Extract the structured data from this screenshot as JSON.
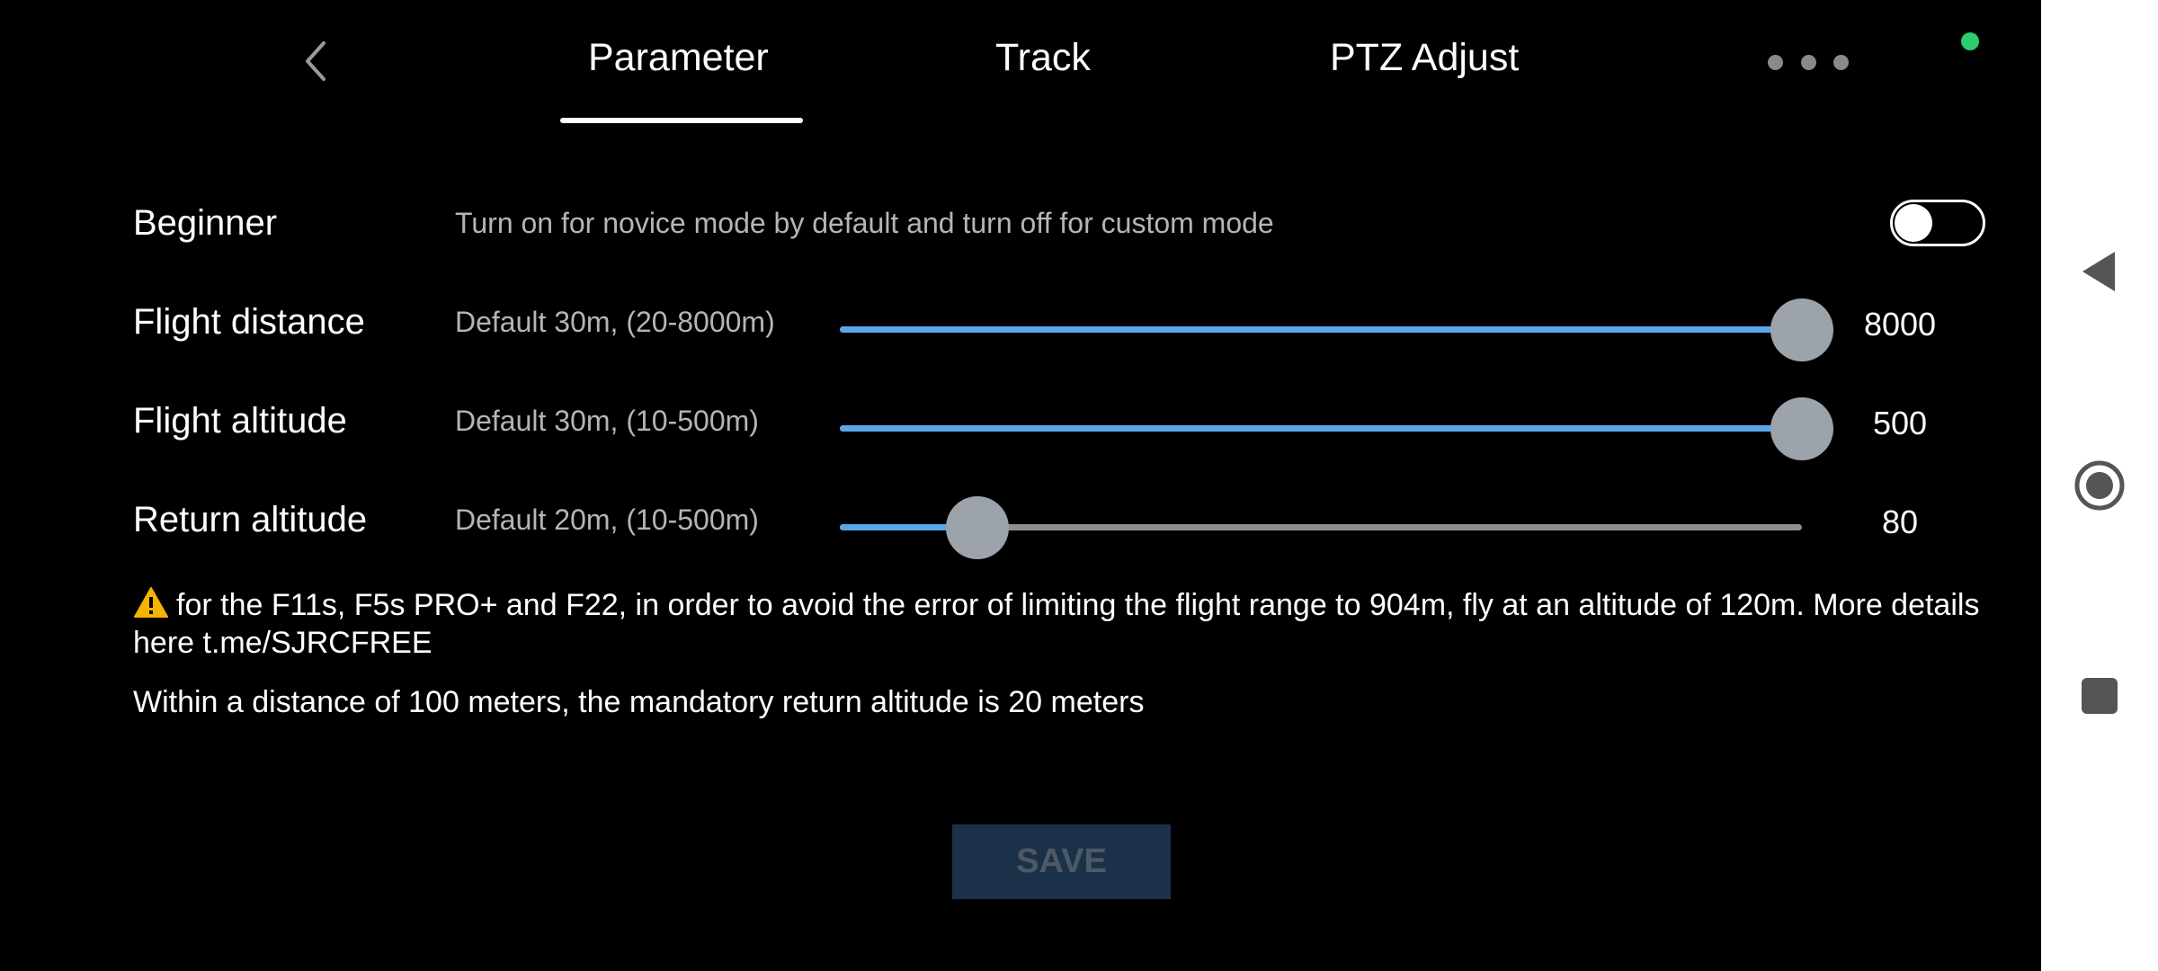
{
  "navbar": {
    "tabs": [
      {
        "label": "Parameter",
        "active": true
      },
      {
        "label": "Track"
      },
      {
        "label": "PTZ Adjust"
      }
    ],
    "back_icon": "chevron-left-icon",
    "more_icon": "more-horizontal-icon",
    "status_color": "#2ecc71"
  },
  "settings": {
    "beginner": {
      "label": "Beginner",
      "description": "Turn on for novice mode by default and turn off for custom mode",
      "enabled": false
    },
    "flight_distance": {
      "label": "Flight distance",
      "description": "Default 30m, (20-8000m)",
      "value": "8000",
      "min": 20,
      "max": 8000,
      "current": 8000
    },
    "flight_altitude": {
      "label": "Flight altitude",
      "description": "Default 30m, (10-500m)",
      "value": "500",
      "min": 10,
      "max": 500,
      "current": 500
    },
    "return_altitude": {
      "label": "Return altitude",
      "description": "Default 20m, (10-500m)",
      "value": "80",
      "min": 10,
      "max": 500,
      "current": 80
    }
  },
  "notice": {
    "warning": "for the F11s, F5s PRO+ and F22, in order to avoid the error of limiting the flight range to 904m, fly at an altitude of 120m. More details here t.me/SJRCFREE",
    "mandatory": "Within a distance of 100 meters, the mandatory return altitude is 20 meters"
  },
  "save_label": "SAVE",
  "colors": {
    "accent": "#5aa7e8",
    "thumb": "#9da3ab",
    "save_bg": "#1a3149",
    "save_text": "#4e5966"
  },
  "system_nav": {
    "back_icon": "triangle-back-icon",
    "home_icon": "circle-home-icon",
    "recent_icon": "square-recent-icon"
  }
}
